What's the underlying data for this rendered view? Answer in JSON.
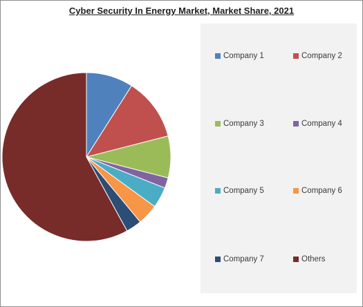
{
  "chart_data": {
    "type": "pie",
    "title": "Cyber Security In Energy Market, Market Share, 2021",
    "legend_position": "right",
    "slices": [
      {
        "label": "Company 1",
        "value": 9,
        "color": "#4F81BD"
      },
      {
        "label": "Company 2",
        "value": 12,
        "color": "#C0504D"
      },
      {
        "label": "Company 3",
        "value": 8,
        "color": "#9BBB59"
      },
      {
        "label": "Company 4",
        "value": 2,
        "color": "#8064A2"
      },
      {
        "label": "Company 5",
        "value": 4,
        "color": "#4BACC6"
      },
      {
        "label": "Company 6",
        "value": 4,
        "color": "#F79646"
      },
      {
        "label": "Company 7",
        "value": 3,
        "color": "#2C4D75"
      },
      {
        "label": "Others",
        "value": 58,
        "color": "#772C2A"
      }
    ]
  }
}
